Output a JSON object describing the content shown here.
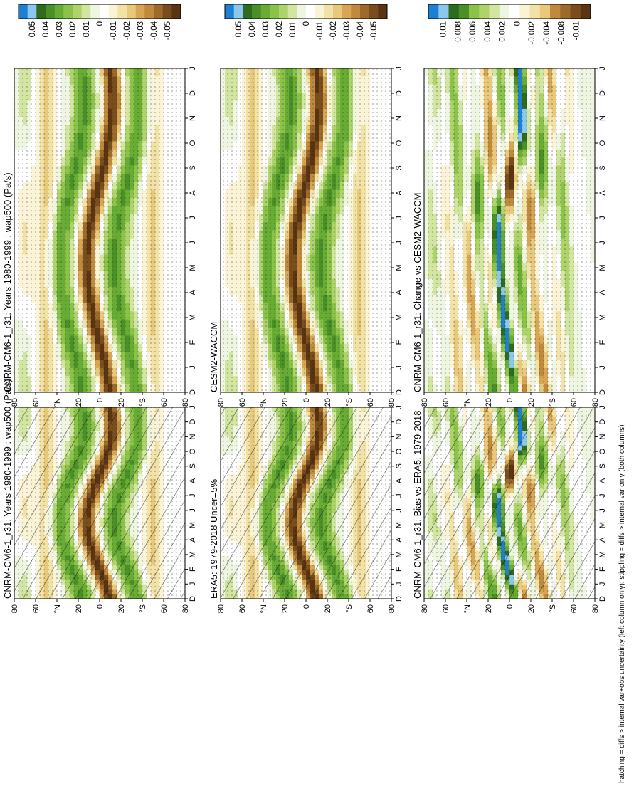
{
  "chart_data": {
    "type": "heatmap",
    "footnote": "hatching = diffs > internal var+obs uncertainty (left column only); stippling = diffs > internal var only (both columns)",
    "months": [
      "D",
      "J",
      "F",
      "M",
      "A",
      "M",
      "J",
      "J",
      "A",
      "S",
      "O",
      "N",
      "D",
      "J"
    ],
    "lat_ticks": [
      "80",
      "60",
      "°N",
      "20",
      "0",
      "20",
      "°S",
      "60",
      "80"
    ],
    "palette": [
      "#1f7fd0",
      "#8ac8ee",
      "#2f6b1e",
      "#4a8f28",
      "#68ac35",
      "#8bc34a",
      "#aed36a",
      "#d2e6a2",
      "#eef6e2",
      "#ffffff",
      "#fbf3d6",
      "#f3e2a6",
      "#e8c87a",
      "#d6a654",
      "#bf8a3d",
      "#9c6a2b",
      "#7a4d1d",
      "#5a3512"
    ],
    "colorbar_main": [
      "0.05",
      "0.04",
      "0.03",
      "0.02",
      "0.01",
      "0",
      "-0.01",
      "-0.02",
      "-0.03",
      "-0.04",
      "-0.05"
    ],
    "colorbar_diff": [
      "0.01",
      "0.008",
      "0.006",
      "0.004",
      "0.002",
      "0",
      "-0.002",
      "-0.004",
      "-0.008",
      "-0.01"
    ],
    "panels": [
      {
        "title": "CNRM-CM6-1_r31: Years 1980-1999 : wap500 (Pa/s)",
        "hatching": true,
        "cb": "main"
      },
      {
        "title": "CNRM-CM6-1_r31: Years 1980-1999 : wap500 (Pa/s)",
        "hatching": false,
        "cb": "main"
      },
      {
        "title": "ERA5: 1979-2018 Uncer=5%",
        "hatching": true,
        "cb": "main"
      },
      {
        "title": "CESM2-WACCM",
        "hatching": false,
        "cb": "main"
      },
      {
        "title": "CNRM-CM6-1_r31: Bias vs ERA5: 1979-2018",
        "hatching": true,
        "cb": "diff"
      },
      {
        "title": "CNRM-CM6-1_r31: Change vs CESM2-WACCM",
        "hatching": false,
        "cb": "diff"
      }
    ]
  }
}
